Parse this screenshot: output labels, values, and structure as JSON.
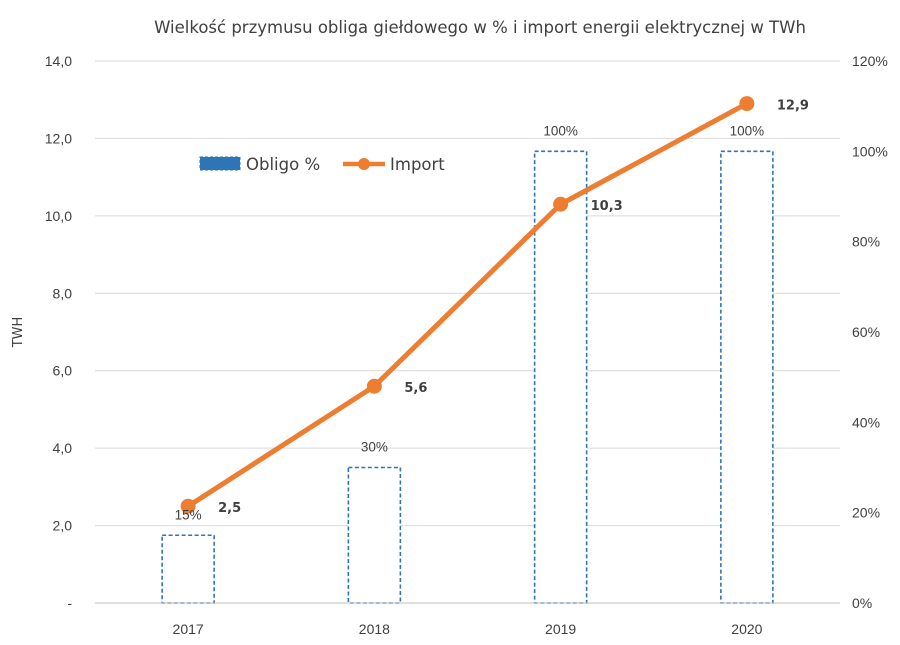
{
  "chart_data": {
    "type": "bar",
    "title": "Wielkość przymusu obliga giełdowego w % i  import energii elektrycznej w TWh",
    "categories": [
      "2017",
      "2018",
      "2019",
      "2020"
    ],
    "ylabel": "TWH",
    "ylim": [
      0,
      14
    ],
    "y_ticks": [
      "-",
      "2,0",
      "4,0",
      "6,0",
      "8,0",
      "10,0",
      "12,0",
      "14,0"
    ],
    "y2lim": [
      0,
      120
    ],
    "y2_ticks": [
      "0%",
      "20%",
      "40%",
      "60%",
      "80%",
      "100%",
      "120%"
    ],
    "grid": true,
    "legend_position": "top-left",
    "series": [
      {
        "name": "Obligo %",
        "kind": "bar",
        "axis": "right",
        "values": [
          15,
          30,
          100,
          100
        ],
        "labels": [
          "15%",
          "30%",
          "100%",
          "100%"
        ],
        "color": "#2e75b6"
      },
      {
        "name": "Import",
        "kind": "line",
        "axis": "left",
        "values": [
          2.5,
          5.6,
          10.3,
          12.9
        ],
        "labels": [
          "2,5",
          "5,6",
          "10,3",
          "12,9"
        ],
        "color": "#ed7d31"
      }
    ]
  }
}
